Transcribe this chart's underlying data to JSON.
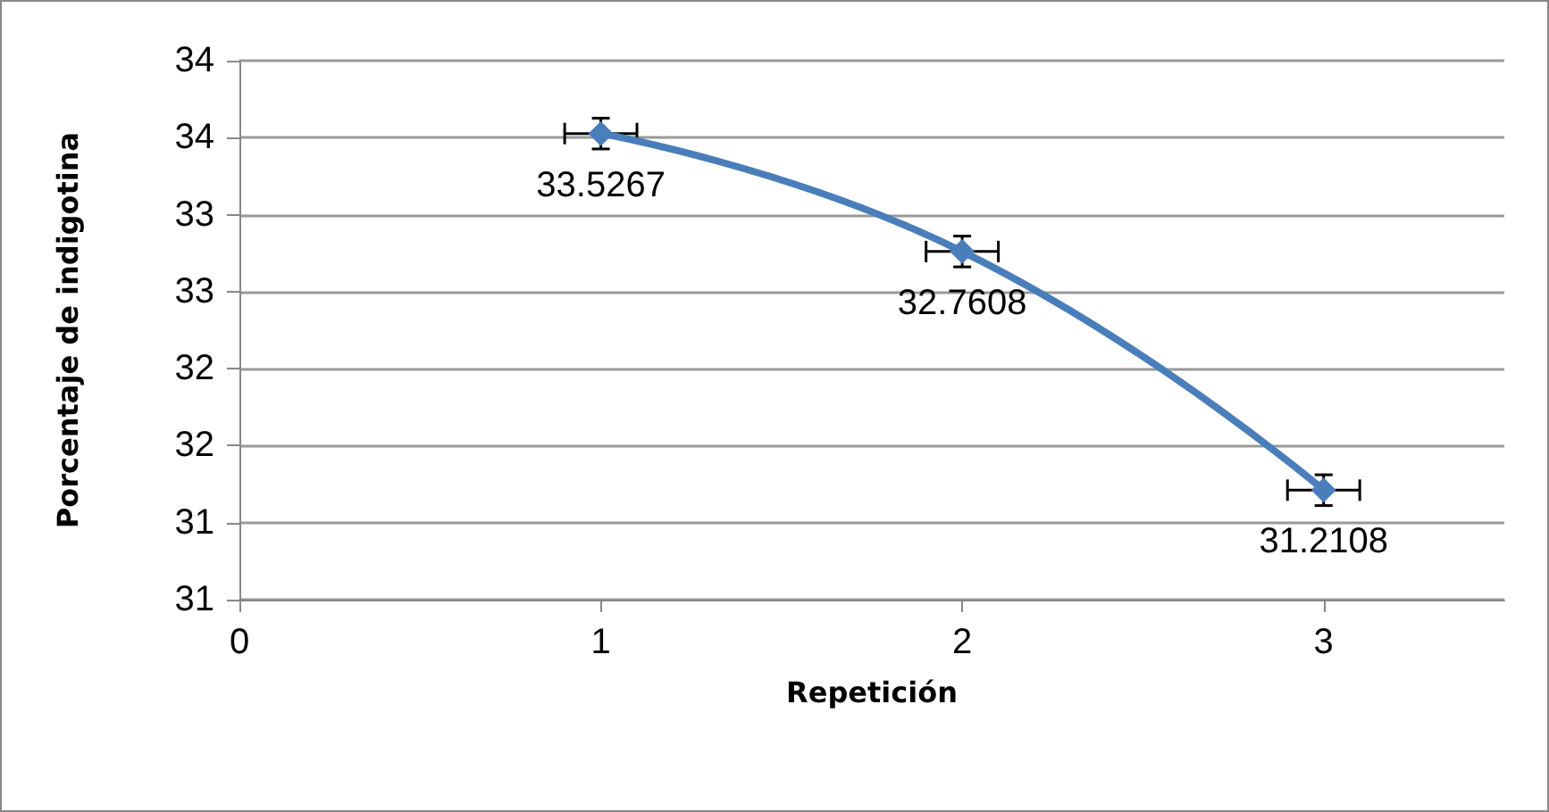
{
  "chart_data": {
    "type": "line",
    "xlabel": "Repetición",
    "ylabel": "Porcentaje de indigotina",
    "x": [
      1,
      2,
      3
    ],
    "series": [
      {
        "color": "#4a7ebb",
        "values": [
          33.5267,
          32.7608,
          31.2108
        ],
        "errors": [
          0.1,
          0.1,
          0.1
        ],
        "xerrors": [
          0.1,
          0.1,
          0.1
        ]
      }
    ],
    "data_labels": true,
    "marker": "diamond",
    "line_style": "solid",
    "xlim": [
      0,
      3.5
    ],
    "xticks": [
      0,
      1,
      2,
      3
    ],
    "ylim": [
      30.5,
      34
    ],
    "yticks": [
      {
        "value": 30.5,
        "label": "31"
      },
      {
        "value": 31,
        "label": "31"
      },
      {
        "value": 31.5,
        "label": "32"
      },
      {
        "value": 32,
        "label": "32"
      },
      {
        "value": 32.5,
        "label": "33"
      },
      {
        "value": 33,
        "label": "33"
      },
      {
        "value": 33.5,
        "label": "34"
      },
      {
        "value": 34,
        "label": "34"
      }
    ],
    "grid": "y"
  }
}
